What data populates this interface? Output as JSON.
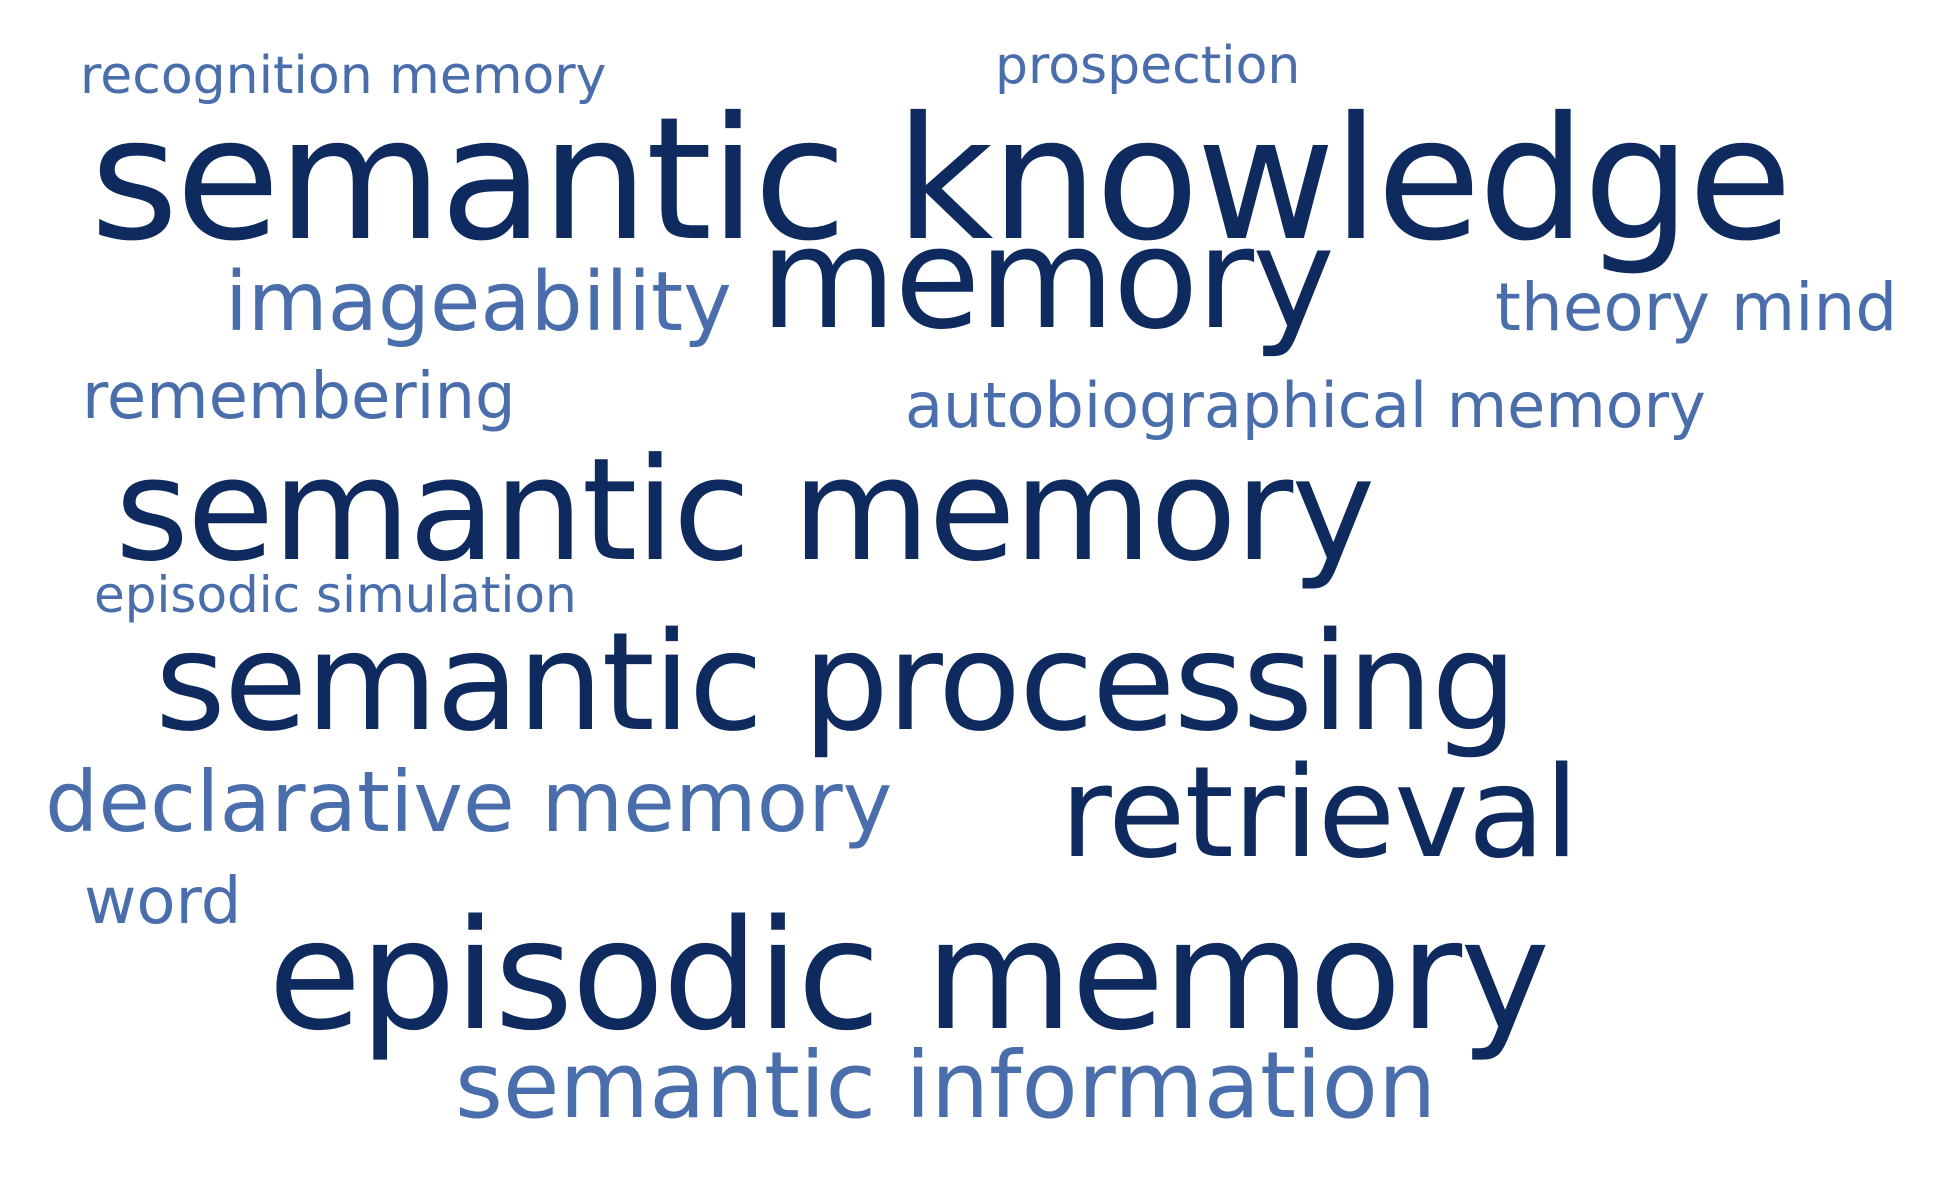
{
  "words": [
    {
      "text": "recognition memory",
      "tone": "light"
    },
    {
      "text": "prospection",
      "tone": "light"
    },
    {
      "text": "semantic knowledge",
      "tone": "dark"
    },
    {
      "text": "memory",
      "tone": "dark"
    },
    {
      "text": "imageability",
      "tone": "light"
    },
    {
      "text": "theory mind",
      "tone": "light"
    },
    {
      "text": "remembering",
      "tone": "light"
    },
    {
      "text": "autobiographical memory",
      "tone": "light"
    },
    {
      "text": "semantic memory",
      "tone": "dark"
    },
    {
      "text": "episodic simulation",
      "tone": "light"
    },
    {
      "text": "semantic processing",
      "tone": "dark"
    },
    {
      "text": "declarative memory",
      "tone": "light"
    },
    {
      "text": "retrieval",
      "tone": "dark"
    },
    {
      "text": "word",
      "tone": "light"
    },
    {
      "text": "episodic memory",
      "tone": "dark"
    },
    {
      "text": "semantic information",
      "tone": "light"
    }
  ],
  "colors": {
    "dark": "#0e2a5e",
    "light": "#4a6eab",
    "background": "#ffffff"
  }
}
